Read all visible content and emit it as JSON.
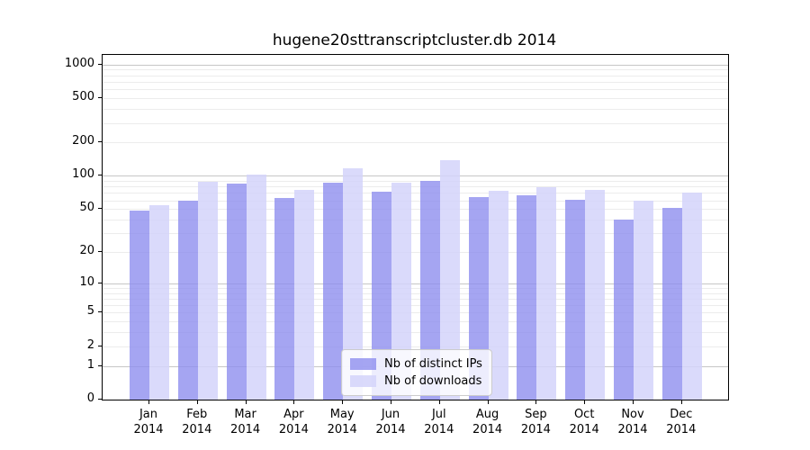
{
  "chart_data": {
    "type": "bar",
    "title": "hugene20sttranscriptcluster.db 2014",
    "categories": [
      "Jan 2014",
      "Feb 2014",
      "Mar 2014",
      "Apr 2014",
      "May 2014",
      "Jun 2014",
      "Jul 2014",
      "Aug 2014",
      "Sep 2014",
      "Oct 2014",
      "Nov 2014",
      "Dec 2014"
    ],
    "series": [
      {
        "name": "Nb of distinct IPs",
        "color": "rgba(140,140,238,0.78)",
        "values": [
          48,
          60,
          85,
          63,
          86,
          72,
          90,
          64,
          66,
          61,
          40,
          51
        ]
      },
      {
        "name": "Nb of downloads",
        "color": "rgba(212,212,250,0.85)",
        "values": [
          54,
          88,
          102,
          75,
          118,
          86,
          138,
          73,
          79,
          75,
          59,
          70
        ]
      }
    ],
    "xlabel": "",
    "ylabel": "",
    "yscale": "log1p",
    "yticks": [
      0,
      1,
      2,
      5,
      10,
      20,
      50,
      100,
      200,
      500,
      1000
    ],
    "ylim": [
      0,
      1220
    ],
    "grid": true,
    "grid_major_at": [
      1,
      10,
      100,
      1000
    ],
    "legend_position": "lower-center-inside",
    "colors": {
      "grid_major": "#c6c6c6",
      "grid_minor": "#ececec",
      "axis": "#000000",
      "background": "#ffffff"
    }
  }
}
